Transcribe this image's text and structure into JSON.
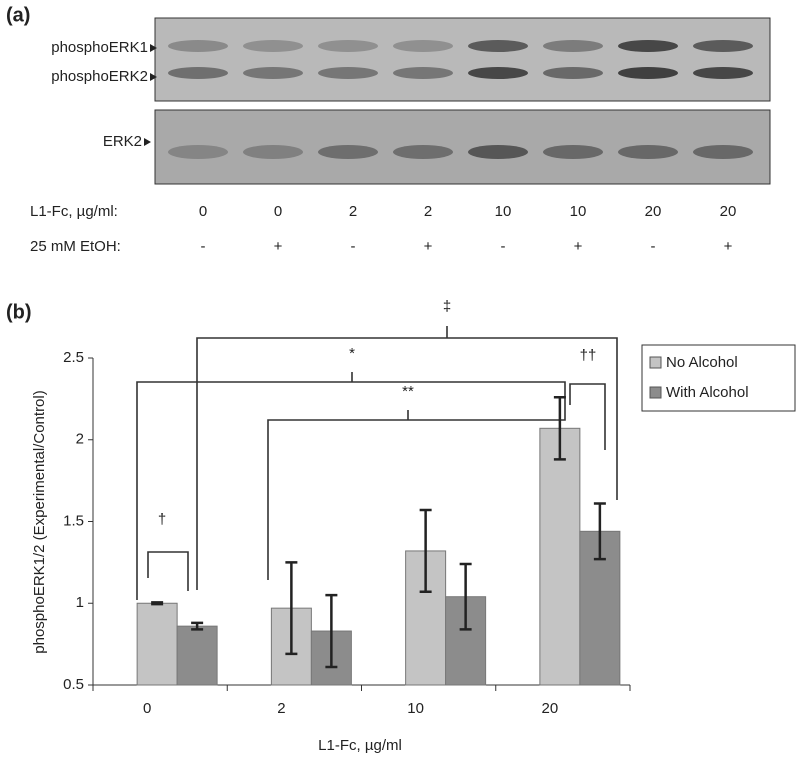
{
  "panel_a": {
    "label": "(a)",
    "bands": [
      "phosphoERK1",
      "phosphoERK2",
      "ERK2"
    ],
    "row_labels": [
      "L1-Fc, µg/ml:",
      "25 mM EtOH:"
    ],
    "doses": [
      "0",
      "0",
      "2",
      "2",
      "10",
      "10",
      "20",
      "20"
    ],
    "ethanol": [
      "-",
      "+",
      "-",
      "+",
      "-",
      "+",
      "-",
      "+"
    ]
  },
  "chart_data": {
    "type": "bar",
    "panel_label": "(b)",
    "x_label": "L1-Fc, µg/ml",
    "y_label": "phosphoERK1/2 (Experimental/Control)",
    "categories": [
      "0",
      "2",
      "10",
      "20"
    ],
    "series": [
      {
        "name": "No Alcohol",
        "color": "#c4c4c4",
        "values": [
          1.0,
          0.97,
          1.32,
          2.07
        ],
        "errors": [
          0.005,
          0.28,
          0.25,
          0.19
        ]
      },
      {
        "name": "With Alcohol",
        "color": "#8c8c8c",
        "values": [
          0.86,
          0.83,
          1.04,
          1.44
        ],
        "errors": [
          0.02,
          0.22,
          0.2,
          0.17
        ]
      }
    ],
    "ylim": [
      0.5,
      2.5
    ],
    "yticks": [
      0.5,
      1,
      1.5,
      2,
      2.5
    ],
    "grid": false,
    "legend": "right",
    "annotations": [
      "†",
      "*",
      "**",
      "‡",
      "††"
    ]
  }
}
